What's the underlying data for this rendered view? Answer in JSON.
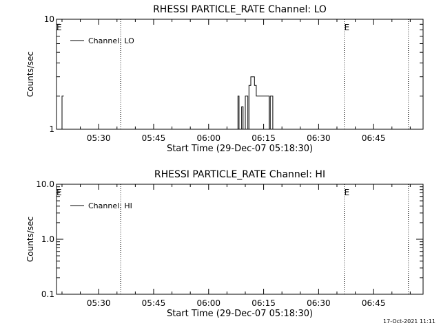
{
  "footer_timestamp": "17-Oct-2021 11:11",
  "chart_data": [
    {
      "type": "line",
      "title": "RHESSI PARTICLE_RATE Channel: LO",
      "xlabel": "Start Time (29-Dec-07 05:18:30)",
      "ylabel": "Counts/sec",
      "x_unit": "minutes since 05:18:30",
      "xlim": [
        0,
        100
      ],
      "ylim": [
        1,
        10
      ],
      "y_scale": "log",
      "x_ticks": [
        {
          "label": "05:30",
          "value": 11.5
        },
        {
          "label": "05:45",
          "value": 26.5
        },
        {
          "label": "06:00",
          "value": 41.5
        },
        {
          "label": "06:15",
          "value": 56.5
        },
        {
          "label": "06:30",
          "value": 71.5
        },
        {
          "label": "06:45",
          "value": 86.5
        }
      ],
      "y_ticks": [
        {
          "label": "1",
          "value": 1
        },
        {
          "label": "10",
          "value": 10
        }
      ],
      "legend": {
        "label": "Channel: LO",
        "position": "top-left"
      },
      "markers": [
        {
          "label": "E",
          "x": 0
        },
        {
          "label": "E",
          "x": 78.5
        }
      ],
      "vlines": [
        17.5,
        78.5,
        96
      ],
      "series": [
        {
          "name": "Channel: LO",
          "points": [
            [
              1.5,
              1.0
            ],
            [
              1.5,
              2.0
            ],
            [
              2.0,
              2.0
            ],
            [
              49.5,
              1.0
            ],
            [
              49.5,
              2.0
            ],
            [
              49.8,
              2.0
            ],
            [
              49.8,
              1.0
            ],
            [
              50.5,
              1.0
            ],
            [
              50.5,
              1.6
            ],
            [
              50.9,
              1.6
            ],
            [
              50.9,
              1.0
            ],
            [
              51.5,
              1.0
            ],
            [
              51.5,
              2.0
            ],
            [
              52.2,
              2.0
            ],
            [
              52.2,
              1.0
            ],
            [
              52.5,
              1.0
            ],
            [
              52.5,
              2.5
            ],
            [
              53.0,
              2.5
            ],
            [
              53.0,
              3.0
            ],
            [
              54.0,
              3.0
            ],
            [
              54.0,
              2.5
            ],
            [
              54.5,
              2.5
            ],
            [
              54.5,
              2.0
            ],
            [
              58.0,
              2.0
            ],
            [
              58.0,
              1.0
            ],
            [
              58.3,
              1.0
            ],
            [
              58.3,
              2.0
            ],
            [
              59.0,
              2.0
            ],
            [
              59.0,
              1.0
            ]
          ]
        }
      ]
    },
    {
      "type": "line",
      "title": "RHESSI PARTICLE_RATE Channel: HI",
      "xlabel": "Start Time (29-Dec-07 05:18:30)",
      "ylabel": "Counts/sec",
      "x_unit": "minutes since 05:18:30",
      "xlim": [
        0,
        100
      ],
      "ylim": [
        0.1,
        10
      ],
      "y_scale": "log",
      "x_ticks": [
        {
          "label": "05:30",
          "value": 11.5
        },
        {
          "label": "05:45",
          "value": 26.5
        },
        {
          "label": "06:00",
          "value": 41.5
        },
        {
          "label": "06:15",
          "value": 56.5
        },
        {
          "label": "06:30",
          "value": 71.5
        },
        {
          "label": "06:45",
          "value": 86.5
        }
      ],
      "y_ticks": [
        {
          "label": "0.1",
          "value": 0.1
        },
        {
          "label": "1.0",
          "value": 1.0
        },
        {
          "label": "10.0",
          "value": 10.0
        }
      ],
      "legend": {
        "label": "Channel: HI",
        "position": "top-left"
      },
      "markers": [
        {
          "label": "E",
          "x": 0
        },
        {
          "label": "E",
          "x": 78.5
        }
      ],
      "vlines": [
        17.5,
        78.5,
        96
      ],
      "series": [
        {
          "name": "Channel: HI",
          "points": []
        }
      ]
    }
  ]
}
